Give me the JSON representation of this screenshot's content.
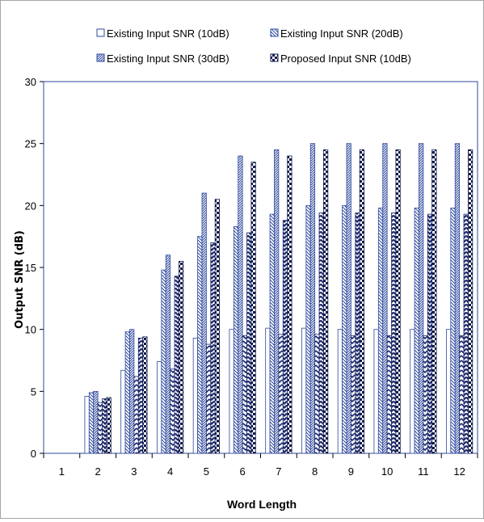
{
  "chart_data": {
    "type": "bar",
    "title": "",
    "xlabel": "Word Length",
    "ylabel": "Output SNR (dB)",
    "categories": [
      "1",
      "2",
      "3",
      "4",
      "5",
      "6",
      "7",
      "8",
      "9",
      "10",
      "11",
      "12"
    ],
    "ylim": [
      0,
      30
    ],
    "yticks": [
      "0",
      "5",
      "10",
      "15",
      "20",
      "25",
      "30"
    ],
    "grid": false,
    "legend_position": "top",
    "series": [
      {
        "name": "Existing Input SNR (10dB)",
        "values": [
          0,
          4.6,
          6.7,
          7.4,
          9.3,
          10.0,
          10.1,
          10.1,
          10.0,
          10.0,
          10.0,
          10.0
        ]
      },
      {
        "name": "Existing Input SNR (20dB)",
        "values": [
          0,
          4.9,
          9.8,
          14.8,
          17.5,
          18.3,
          19.3,
          20.0,
          20.0,
          19.8,
          19.8,
          19.8
        ]
      },
      {
        "name": "Existing Input SNR (30dB)",
        "values": [
          0,
          5.0,
          10.0,
          16.0,
          21.0,
          24.0,
          24.5,
          25.0,
          25.0,
          25.0,
          25.0,
          25.0
        ]
      },
      {
        "name": "",
        "values": [
          0,
          4.1,
          6.2,
          6.8,
          8.8,
          9.5,
          9.6,
          9.6,
          9.5,
          9.5,
          9.5,
          9.5
        ]
      },
      {
        "name": "",
        "values": [
          0,
          4.4,
          9.3,
          14.3,
          17.0,
          17.8,
          18.8,
          19.4,
          19.4,
          19.4,
          19.3,
          19.3
        ]
      },
      {
        "name": "Proposed Input SNR (10dB)",
        "values": [
          0,
          4.5,
          9.4,
          15.5,
          20.5,
          23.5,
          24.0,
          24.5,
          24.5,
          24.5,
          24.5,
          24.5
        ]
      }
    ],
    "series_styles": [
      {
        "pattern": "open",
        "color": "#2e4a9e"
      },
      {
        "pattern": "backslash",
        "color": "#2e4a9e"
      },
      {
        "pattern": "slash-dense",
        "color": "#2e4a9e"
      },
      {
        "pattern": "zigzag",
        "color": "#1d2a6e"
      },
      {
        "pattern": "zigzag-dense",
        "color": "#1d2a6e"
      },
      {
        "pattern": "checker",
        "color": "#0f1a4a"
      }
    ],
    "legend": [
      {
        "label": "Existing Input SNR (10dB)",
        "series_index": 0
      },
      {
        "label": "Existing Input SNR (20dB)",
        "series_index": 1
      },
      {
        "label": "Existing Input SNR (30dB)",
        "series_index": 2
      },
      {
        "label": "Proposed Input SNR (10dB)",
        "series_index": 5
      }
    ]
  }
}
